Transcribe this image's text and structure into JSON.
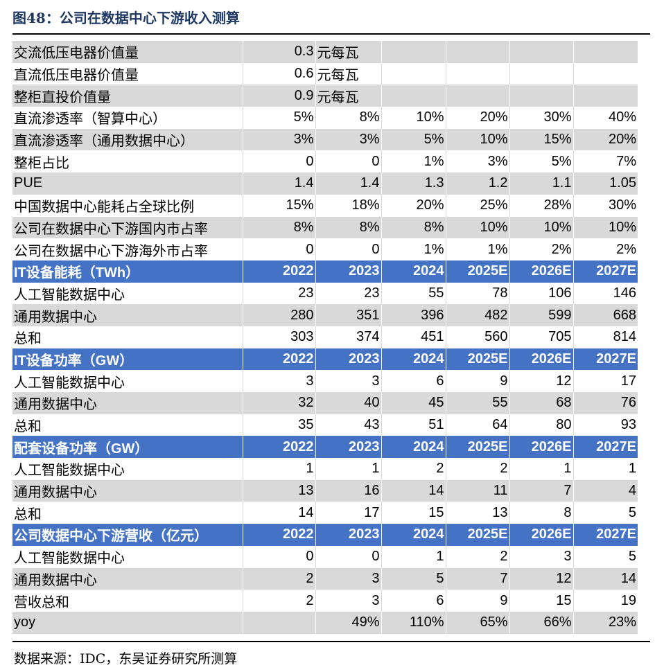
{
  "title": "图48：公司在数据中心下游收入测算",
  "source": "数据来源：IDC，东吴证券研究所测算",
  "colors": {
    "header_bg": "#4472c4",
    "stripe": "#d9d9d9",
    "title_color": "#1f3864"
  },
  "rows": [
    {
      "type": "gray",
      "cells": [
        "交流低压电器价值量",
        "0.3",
        "元每瓦",
        "",
        "",
        "",
        ""
      ]
    },
    {
      "type": "white",
      "cells": [
        "直流低压电器价值量",
        "0.6",
        "元每瓦",
        "",
        "",
        "",
        ""
      ]
    },
    {
      "type": "gray",
      "cells": [
        "整柜直投价值量",
        "0.9",
        "元每瓦",
        "",
        "",
        "",
        ""
      ]
    },
    {
      "type": "white",
      "cells": [
        "直流渗透率（智算中心）",
        "5%",
        "8%",
        "10%",
        "20%",
        "30%",
        "40%"
      ]
    },
    {
      "type": "gray",
      "cells": [
        "直流渗透率（通用数据中心）",
        "3%",
        "3%",
        "5%",
        "10%",
        "15%",
        "20%"
      ]
    },
    {
      "type": "white",
      "cells": [
        "整柜占比",
        "0",
        "0",
        "1%",
        "3%",
        "5%",
        "7%"
      ]
    },
    {
      "type": "gray",
      "cells": [
        "PUE",
        "1.4",
        "1.4",
        "1.3",
        "1.2",
        "1.1",
        "1.05"
      ]
    },
    {
      "type": "white",
      "cells": [
        "中国数据中心能耗占全球比例",
        "15%",
        "18%",
        "20%",
        "25%",
        "28%",
        "30%"
      ]
    },
    {
      "type": "gray",
      "cells": [
        "公司在数据中心下游国内市占率",
        "8%",
        "8%",
        "8%",
        "10%",
        "10%",
        "10%"
      ]
    },
    {
      "type": "white",
      "cells": [
        "公司在数据中心下游海外市占率",
        "0",
        "0",
        "1%",
        "1%",
        "2%",
        "2%"
      ]
    },
    {
      "type": "head",
      "cells": [
        "IT设备能耗（TWh）",
        "2022",
        "2023",
        "2024",
        "2025E",
        "2026E",
        "2027E"
      ]
    },
    {
      "type": "white",
      "cells": [
        "人工智能数据中心",
        "23",
        "23",
        "55",
        "78",
        "106",
        "146"
      ]
    },
    {
      "type": "gray",
      "cells": [
        "通用数据中心",
        "280",
        "351",
        "396",
        "482",
        "599",
        "668"
      ]
    },
    {
      "type": "white",
      "cells": [
        "总和",
        "303",
        "374",
        "451",
        "560",
        "705",
        "814"
      ]
    },
    {
      "type": "head",
      "cells": [
        "IT设备功率（GW）",
        "2022",
        "2023",
        "2024",
        "2025E",
        "2026E",
        "2027E"
      ]
    },
    {
      "type": "white",
      "cells": [
        "人工智能数据中心",
        "3",
        "3",
        "6",
        "9",
        "12",
        "17"
      ]
    },
    {
      "type": "gray",
      "cells": [
        "通用数据中心",
        "32",
        "40",
        "45",
        "55",
        "68",
        "76"
      ]
    },
    {
      "type": "white",
      "cells": [
        "总和",
        "35",
        "43",
        "51",
        "64",
        "80",
        "93"
      ]
    },
    {
      "type": "head",
      "cells": [
        "配套设备功率（GW）",
        "2022",
        "2023",
        "2024",
        "2025E",
        "2026E",
        "2027E"
      ]
    },
    {
      "type": "white",
      "cells": [
        "人工智能数据中心",
        "1",
        "1",
        "2",
        "2",
        "1",
        "1"
      ]
    },
    {
      "type": "gray",
      "cells": [
        "通用数据中心",
        "13",
        "16",
        "14",
        "11",
        "7",
        "4"
      ]
    },
    {
      "type": "white",
      "cells": [
        "总和",
        "14",
        "17",
        "15",
        "13",
        "8",
        "5"
      ]
    },
    {
      "type": "head",
      "cells": [
        "公司数据中心下游营收（亿元）",
        "2022",
        "2023",
        "2024",
        "2025E",
        "2026E",
        "2027E"
      ]
    },
    {
      "type": "white",
      "cells": [
        "人工智能数据中心",
        "0",
        "0",
        "1",
        "2",
        "3",
        "5"
      ]
    },
    {
      "type": "gray",
      "cells": [
        "通用数据中心",
        "2",
        "3",
        "5",
        "7",
        "12",
        "14"
      ]
    },
    {
      "type": "white",
      "cells": [
        "营收总和",
        "2",
        "3",
        "6",
        "9",
        "15",
        "19"
      ]
    },
    {
      "type": "gray",
      "cells": [
        "yoy",
        "",
        "49%",
        "110%",
        "65%",
        "66%",
        "23%"
      ]
    }
  ]
}
